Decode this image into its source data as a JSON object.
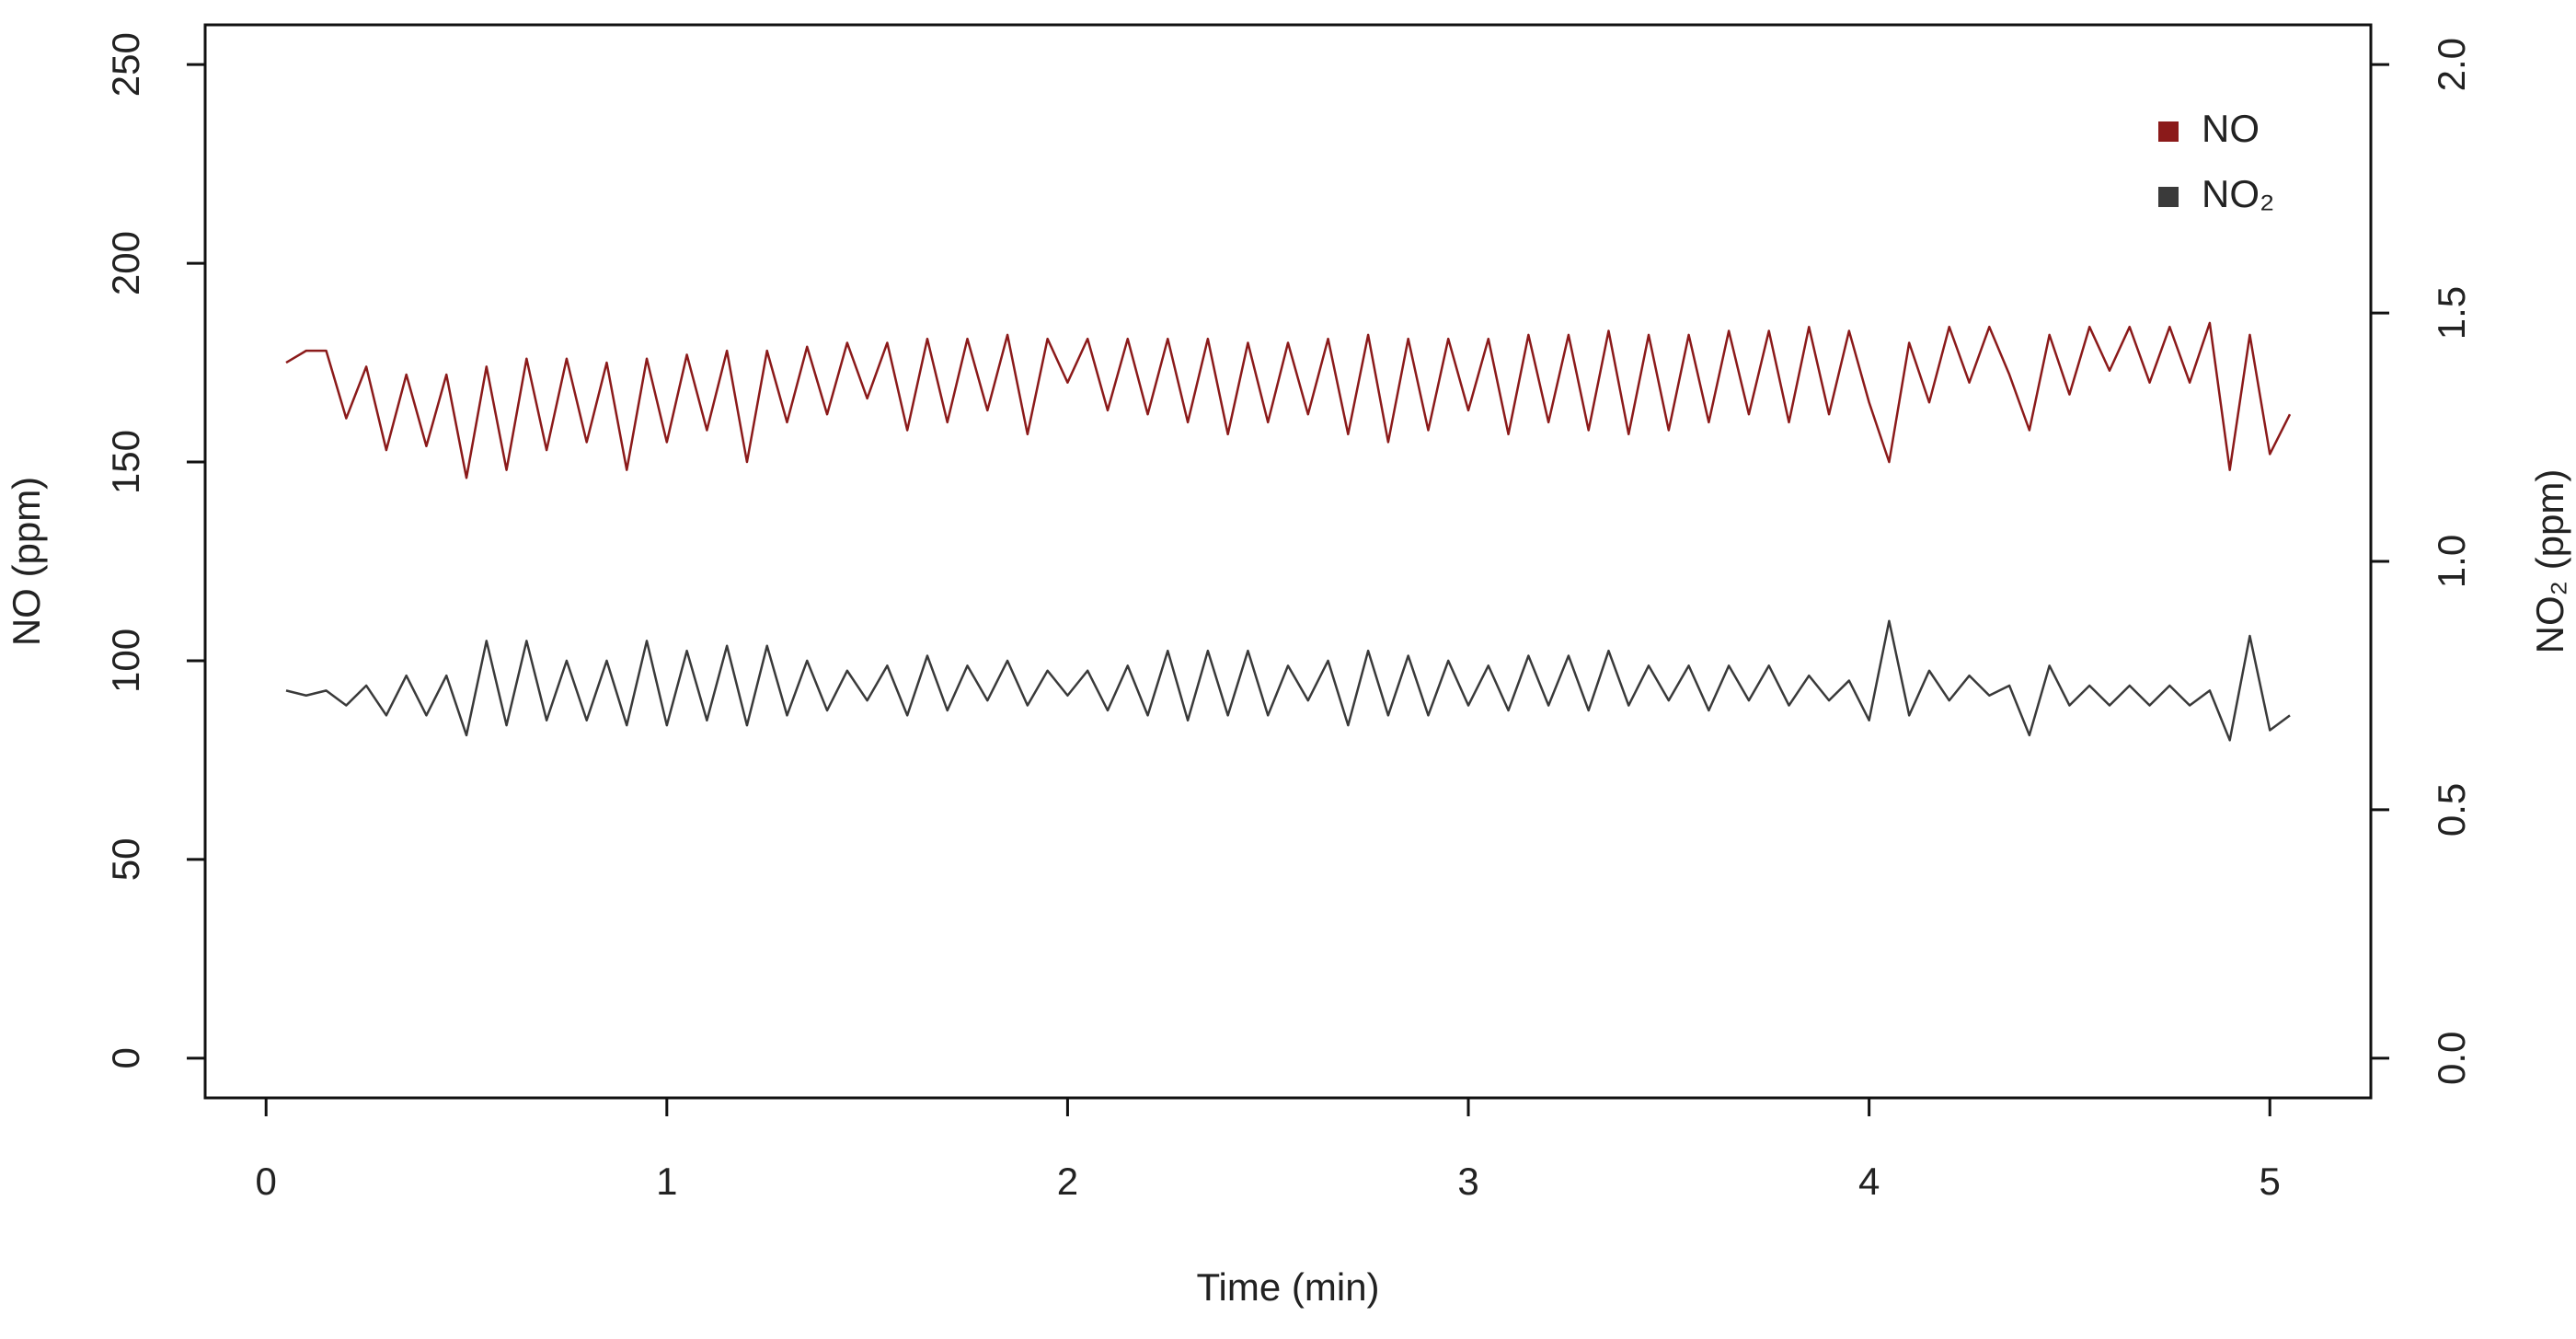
{
  "chart_data": {
    "type": "line",
    "xlabel": "Time (min)",
    "ylabel": "NO (ppm)",
    "y2label": "NO₂ (ppm)",
    "x": [
      0.05,
      0.1,
      0.15,
      0.2,
      0.25,
      0.3,
      0.35,
      0.4,
      0.45,
      0.5,
      0.55,
      0.6,
      0.65,
      0.7,
      0.75,
      0.8,
      0.85,
      0.9,
      0.95,
      1.0,
      1.05,
      1.1,
      1.15,
      1.2,
      1.25,
      1.3,
      1.35,
      1.4,
      1.45,
      1.5,
      1.55,
      1.6,
      1.65,
      1.7,
      1.75,
      1.8,
      1.85,
      1.9,
      1.95,
      2.0,
      2.05,
      2.1,
      2.15,
      2.2,
      2.25,
      2.3,
      2.35,
      2.4,
      2.45,
      2.5,
      2.55,
      2.6,
      2.65,
      2.7,
      2.75,
      2.8,
      2.85,
      2.9,
      2.95,
      3.0,
      3.05,
      3.1,
      3.15,
      3.2,
      3.25,
      3.3,
      3.35,
      3.4,
      3.45,
      3.5,
      3.55,
      3.6,
      3.65,
      3.7,
      3.75,
      3.8,
      3.85,
      3.9,
      3.95,
      4.0,
      4.05,
      4.1,
      4.15,
      4.2,
      4.25,
      4.3,
      4.35,
      4.4,
      4.45,
      4.5,
      4.55,
      4.6,
      4.65,
      4.7,
      4.75,
      4.8,
      4.85,
      4.9,
      4.95,
      5.0,
      5.05
    ],
    "series": [
      {
        "name": "NO",
        "color": "#8b1a1a",
        "values": [
          175,
          178,
          178,
          161,
          174,
          153,
          172,
          154,
          172,
          146,
          174,
          148,
          176,
          153,
          176,
          155,
          175,
          148,
          176,
          155,
          177,
          158,
          178,
          150,
          178,
          160,
          179,
          162,
          180,
          166,
          180,
          158,
          181,
          160,
          181,
          163,
          182,
          157,
          181,
          170,
          181,
          163,
          181,
          162,
          181,
          160,
          181,
          157,
          180,
          160,
          180,
          162,
          181,
          157,
          182,
          155,
          181,
          158,
          181,
          163,
          181,
          157,
          182,
          160,
          182,
          158,
          183,
          157,
          182,
          158,
          182,
          160,
          183,
          162,
          183,
          160,
          184,
          162,
          183,
          165,
          150,
          180,
          165,
          184,
          170,
          184,
          172,
          158,
          182,
          167,
          184,
          173,
          184,
          170,
          184,
          170,
          185,
          148,
          182,
          152,
          162
        ]
      },
      {
        "name": "NO₂",
        "color": "#3a3a3a",
        "axis": "y2",
        "values": [
          0.74,
          0.73,
          0.74,
          0.71,
          0.75,
          0.69,
          0.77,
          0.69,
          0.77,
          0.65,
          0.84,
          0.67,
          0.84,
          0.68,
          0.8,
          0.68,
          0.8,
          0.67,
          0.84,
          0.67,
          0.82,
          0.68,
          0.83,
          0.67,
          0.83,
          0.69,
          0.8,
          0.7,
          0.78,
          0.72,
          0.79,
          0.69,
          0.81,
          0.7,
          0.79,
          0.72,
          0.8,
          0.71,
          0.78,
          0.73,
          0.78,
          0.7,
          0.79,
          0.69,
          0.82,
          0.68,
          0.82,
          0.69,
          0.82,
          0.69,
          0.79,
          0.72,
          0.8,
          0.67,
          0.82,
          0.69,
          0.81,
          0.69,
          0.8,
          0.71,
          0.79,
          0.7,
          0.81,
          0.71,
          0.81,
          0.7,
          0.82,
          0.71,
          0.79,
          0.72,
          0.79,
          0.7,
          0.79,
          0.72,
          0.79,
          0.71,
          0.77,
          0.72,
          0.76,
          0.68,
          0.88,
          0.69,
          0.78,
          0.72,
          0.77,
          0.73,
          0.75,
          0.65,
          0.79,
          0.71,
          0.75,
          0.71,
          0.75,
          0.71,
          0.75,
          0.71,
          0.74,
          0.64,
          0.85,
          0.66,
          0.69
        ]
      }
    ],
    "xlim": [
      -0.152,
      5.252
    ],
    "xticks": [
      0,
      1,
      2,
      3,
      4,
      5
    ],
    "ylim": [
      -10,
      260
    ],
    "yticks": [
      0,
      50,
      100,
      150,
      200,
      250
    ],
    "y2lim": [
      -0.08,
      2.08
    ],
    "y2ticks": [
      {
        "value": 0,
        "label": "0.0"
      },
      0.5,
      {
        "value": 1,
        "label": "1.0"
      },
      1.5,
      {
        "value": 2,
        "label": "2.0"
      }
    ],
    "legend": "topright",
    "grid": false
  }
}
